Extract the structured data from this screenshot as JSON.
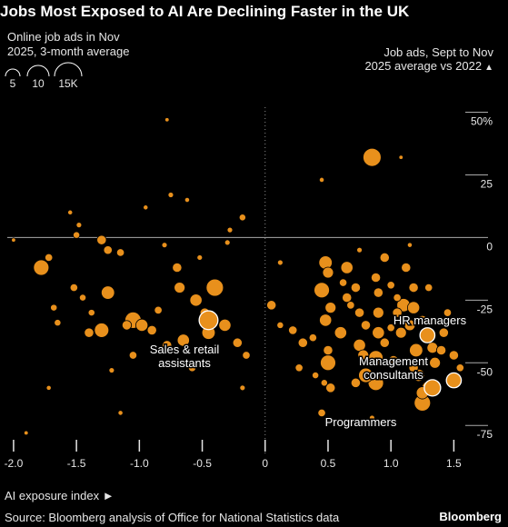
{
  "title": "Jobs Most Exposed to AI Are Declining Faster in the UK",
  "subtitle": "Online job ads in Nov 2025, 3-month average",
  "size_legend": {
    "items": [
      "5",
      "10",
      "15K"
    ]
  },
  "y_header": "Job ads, Sept to Nov 2025 average vs 2022",
  "x_axis_label": "AI exposure index",
  "source": "Source: Bloomberg analysis of Office for National Statistics data",
  "brand": "Bloomberg",
  "colors": {
    "bubble": "#e8901c",
    "background": "#000000",
    "text": "#ffffff",
    "grid": "#888888"
  },
  "chart_data": {
    "type": "scatter",
    "xlabel": "AI exposure index",
    "ylabel": "Job ads, Sept to Nov 2025 average vs 2022",
    "xlim": [
      -2.05,
      1.62
    ],
    "ylim": [
      -80,
      52
    ],
    "x_ticks": [
      -2.0,
      -1.5,
      -1.0,
      -0.5,
      0,
      0.5,
      1.0,
      1.5
    ],
    "x_tick_labels": [
      "-2.0",
      "-1.5",
      "-1.0",
      "-0.5",
      "0",
      "0.5",
      "1.0",
      "1.5"
    ],
    "y_ticks": [
      50,
      25,
      0,
      -25,
      -50,
      -75
    ],
    "y_tick_labels": [
      "50%",
      "25",
      "0",
      "-25",
      "-50",
      "-75"
    ],
    "size_unit": "thousand job ads",
    "points": [
      {
        "x": 0.85,
        "y": 32,
        "size": 11
      },
      {
        "x": -2.0,
        "y": -1,
        "size": 0.6
      },
      {
        "x": -1.78,
        "y": -12,
        "size": 8
      },
      {
        "x": -1.72,
        "y": -8,
        "size": 2
      },
      {
        "x": -1.5,
        "y": 1,
        "size": 1.5
      },
      {
        "x": -1.48,
        "y": 5,
        "size": 1
      },
      {
        "x": -1.3,
        "y": -1,
        "size": 3
      },
      {
        "x": -1.25,
        "y": -5,
        "size": 2.5
      },
      {
        "x": -1.15,
        "y": -6,
        "size": 2
      },
      {
        "x": -1.55,
        "y": 10,
        "size": 0.8
      },
      {
        "x": -1.25,
        "y": -22,
        "size": 6
      },
      {
        "x": -1.52,
        "y": -20,
        "size": 2
      },
      {
        "x": -1.45,
        "y": -24,
        "size": 1.5
      },
      {
        "x": -1.68,
        "y": -28,
        "size": 1.5
      },
      {
        "x": -1.65,
        "y": -34,
        "size": 1.5
      },
      {
        "x": -1.38,
        "y": -30,
        "size": 1.5
      },
      {
        "x": -1.4,
        "y": -38,
        "size": 3
      },
      {
        "x": -1.3,
        "y": -37,
        "size": 7
      },
      {
        "x": -1.1,
        "y": -35,
        "size": 3
      },
      {
        "x": -1.05,
        "y": -33,
        "size": 9
      },
      {
        "x": -0.98,
        "y": -35,
        "size": 5
      },
      {
        "x": -0.9,
        "y": -37,
        "size": 3
      },
      {
        "x": -0.85,
        "y": -29,
        "size": 2
      },
      {
        "x": -0.7,
        "y": -12,
        "size": 3
      },
      {
        "x": -0.68,
        "y": -20,
        "size": 4
      },
      {
        "x": -0.55,
        "y": -25,
        "size": 5
      },
      {
        "x": -0.4,
        "y": -20,
        "size": 10
      },
      {
        "x": -0.48,
        "y": -30,
        "size": 3
      },
      {
        "x": -0.45,
        "y": -38,
        "size": 6
      },
      {
        "x": -0.32,
        "y": -35,
        "size": 5
      },
      {
        "x": -0.22,
        "y": -42,
        "size": 3
      },
      {
        "x": -0.15,
        "y": -47,
        "size": 2
      },
      {
        "x": -0.65,
        "y": -41,
        "size": 5
      },
      {
        "x": -0.78,
        "y": -43,
        "size": 3
      },
      {
        "x": -0.58,
        "y": -52,
        "size": 2
      },
      {
        "x": -0.18,
        "y": -60,
        "size": 1
      },
      {
        "x": -0.28,
        "y": 3,
        "size": 1
      },
      {
        "x": -0.75,
        "y": 17,
        "size": 1
      },
      {
        "x": -0.62,
        "y": 15,
        "size": 0.8
      },
      {
        "x": -0.95,
        "y": 12,
        "size": 0.8
      },
      {
        "x": -0.18,
        "y": 8,
        "size": 1.5
      },
      {
        "x": -0.3,
        "y": -2,
        "size": 1
      },
      {
        "x": -0.8,
        "y": -3,
        "size": 1
      },
      {
        "x": -0.52,
        "y": -8,
        "size": 1
      },
      {
        "x": -1.15,
        "y": -70,
        "size": 0.8
      },
      {
        "x": -1.9,
        "y": -78,
        "size": 0.6
      },
      {
        "x": -1.05,
        "y": -47,
        "size": 2
      },
      {
        "x": -1.22,
        "y": -53,
        "size": 1
      },
      {
        "x": -1.72,
        "y": -60,
        "size": 0.8
      },
      {
        "x": -0.78,
        "y": 47,
        "size": 0.6
      },
      {
        "x": 0.05,
        "y": -27,
        "size": 3
      },
      {
        "x": 0.12,
        "y": -35,
        "size": 1.5
      },
      {
        "x": 0.22,
        "y": -37,
        "size": 2.5
      },
      {
        "x": 0.3,
        "y": -42,
        "size": 3
      },
      {
        "x": 0.38,
        "y": -40,
        "size": 2
      },
      {
        "x": 0.27,
        "y": -52,
        "size": 2
      },
      {
        "x": 0.4,
        "y": -55,
        "size": 1.5
      },
      {
        "x": 0.47,
        "y": -58,
        "size": 1.5
      },
      {
        "x": 0.48,
        "y": -10,
        "size": 6
      },
      {
        "x": 0.5,
        "y": -14,
        "size": 4
      },
      {
        "x": 0.45,
        "y": -21,
        "size": 8
      },
      {
        "x": 0.52,
        "y": -28,
        "size": 4
      },
      {
        "x": 0.48,
        "y": -33,
        "size": 5
      },
      {
        "x": 0.6,
        "y": -38,
        "size": 5
      },
      {
        "x": 0.5,
        "y": -45,
        "size": 3
      },
      {
        "x": 0.5,
        "y": -50,
        "size": 8
      },
      {
        "x": 0.52,
        "y": -60,
        "size": 3
      },
      {
        "x": 0.45,
        "y": -70,
        "size": 2
      },
      {
        "x": 0.65,
        "y": -24,
        "size": 3
      },
      {
        "x": 0.75,
        "y": -30,
        "size": 3
      },
      {
        "x": 0.65,
        "y": -12,
        "size": 5
      },
      {
        "x": 0.72,
        "y": -20,
        "size": 3
      },
      {
        "x": 0.8,
        "y": -35,
        "size": 3
      },
      {
        "x": 0.75,
        "y": -43,
        "size": 5
      },
      {
        "x": 0.78,
        "y": -47,
        "size": 4
      },
      {
        "x": 0.8,
        "y": -55,
        "size": 7
      },
      {
        "x": 0.72,
        "y": -58,
        "size": 3
      },
      {
        "x": 0.88,
        "y": -58,
        "size": 8
      },
      {
        "x": 0.88,
        "y": -48,
        "size": 7
      },
      {
        "x": 0.9,
        "y": -38,
        "size": 5
      },
      {
        "x": 0.9,
        "y": -30,
        "size": 4
      },
      {
        "x": 0.9,
        "y": -22,
        "size": 3
      },
      {
        "x": 0.88,
        "y": -16,
        "size": 3
      },
      {
        "x": 0.95,
        "y": -8,
        "size": 3
      },
      {
        "x": 1.0,
        "y": -19,
        "size": 2
      },
      {
        "x": 1.05,
        "y": -30,
        "size": 3
      },
      {
        "x": 1.08,
        "y": -38,
        "size": 4
      },
      {
        "x": 1.1,
        "y": -27,
        "size": 6
      },
      {
        "x": 1.12,
        "y": -12,
        "size": 3
      },
      {
        "x": 1.18,
        "y": -20,
        "size": 3
      },
      {
        "x": 1.2,
        "y": -45,
        "size": 6
      },
      {
        "x": 1.22,
        "y": -55,
        "size": 5
      },
      {
        "x": 1.25,
        "y": -62,
        "size": 5
      },
      {
        "x": 1.3,
        "y": -60,
        "size": 6
      },
      {
        "x": 1.35,
        "y": -50,
        "size": 4
      },
      {
        "x": 1.4,
        "y": -45,
        "size": 3
      },
      {
        "x": 1.42,
        "y": -38,
        "size": 3
      },
      {
        "x": 1.45,
        "y": -30,
        "size": 2
      },
      {
        "x": 1.5,
        "y": -47,
        "size": 3
      },
      {
        "x": 1.48,
        "y": -57,
        "size": 4
      },
      {
        "x": 1.55,
        "y": -52,
        "size": 2
      },
      {
        "x": 1.3,
        "y": -20,
        "size": 2
      },
      {
        "x": 1.25,
        "y": -33,
        "size": 3
      },
      {
        "x": 1.15,
        "y": -35,
        "size": 4
      },
      {
        "x": 1.25,
        "y": -66,
        "size": 9
      },
      {
        "x": 1.33,
        "y": -60,
        "size": 5
      },
      {
        "x": 1.48,
        "y": -58,
        "size": 3
      },
      {
        "x": 1.33,
        "y": -44,
        "size": 4
      },
      {
        "x": 1.18,
        "y": -28,
        "size": 5
      },
      {
        "x": 1.05,
        "y": -24,
        "size": 2
      },
      {
        "x": 0.45,
        "y": 23,
        "size": 0.8
      },
      {
        "x": 1.08,
        "y": 32,
        "size": 0.6
      },
      {
        "x": 1.15,
        "y": -3,
        "size": 0.8
      },
      {
        "x": 0.75,
        "y": -5,
        "size": 1
      },
      {
        "x": 0.12,
        "y": -10,
        "size": 1
      },
      {
        "x": 0.85,
        "y": -72,
        "size": 1
      },
      {
        "x": 0.62,
        "y": -18,
        "size": 2
      },
      {
        "x": 0.68,
        "y": -27,
        "size": 2
      },
      {
        "x": 0.95,
        "y": -42,
        "size": 3
      },
      {
        "x": 1.0,
        "y": -36,
        "size": 2
      },
      {
        "x": 1.18,
        "y": -52,
        "size": 3
      },
      {
        "x": 1.02,
        "y": -49,
        "size": 3
      }
    ],
    "highlighted": [
      {
        "label": "HR managers",
        "x": 1.29,
        "y": -39,
        "size": 3
      },
      {
        "label": "Management consultants",
        "x": 1.5,
        "y": -57,
        "size": 3
      },
      {
        "label": "Programmers",
        "x": 1.33,
        "y": -60,
        "size": 4
      },
      {
        "label": "Sales & retail assistants",
        "x": -0.45,
        "y": -33,
        "size": 6
      }
    ]
  }
}
